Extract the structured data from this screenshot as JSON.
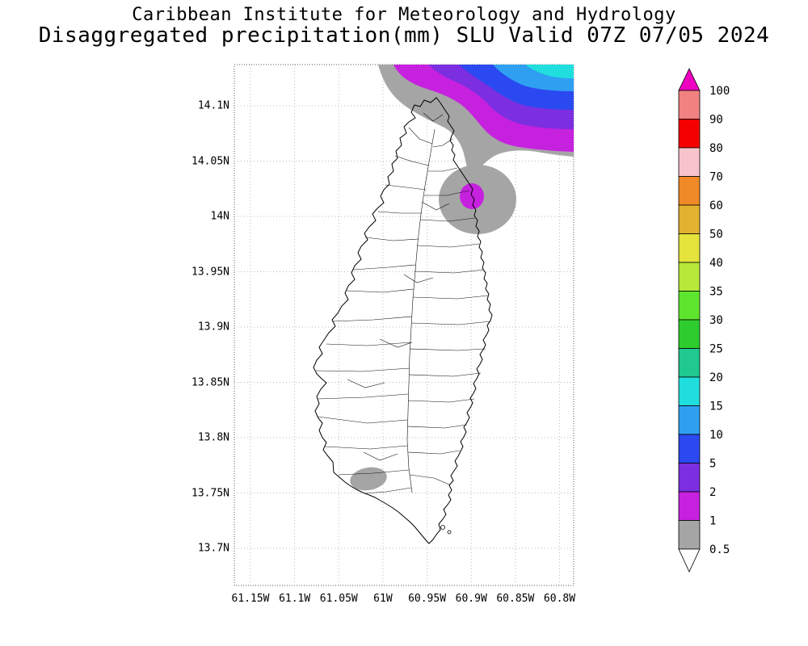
{
  "header": {
    "line1": "Caribbean Institute for Meteorology and Hydrology",
    "line2": "Disaggregated precipitation(mm) SLU Valid 07Z 07/05 2024"
  },
  "map": {
    "lat_labels": [
      "14.1N",
      "14.05N",
      "14N",
      "13.95N",
      "13.9N",
      "13.85N",
      "13.8N",
      "13.75N",
      "13.7N"
    ],
    "lon_labels": [
      "61.15W",
      "61.1W",
      "61.05W",
      "61W",
      "60.95W",
      "60.9W",
      "60.85W",
      "60.8W"
    ]
  },
  "colorbar": {
    "boundary_labels": [
      "100",
      "90",
      "80",
      "70",
      "60",
      "50",
      "40",
      "35",
      "30",
      "25",
      "20",
      "15",
      "10",
      "5",
      "2",
      "1",
      "0.5"
    ],
    "segment_colors_top_to_bottom": [
      "#f28282",
      "#f50000",
      "#f8c3cb",
      "#f08a28",
      "#e2b12e",
      "#e4e43c",
      "#b6e93a",
      "#5ee52e",
      "#2ecc2e",
      "#1fc990",
      "#21dede",
      "#2f9ff2",
      "#2b49f0",
      "#7b2fe0",
      "#c621df",
      "#a5a5a5"
    ],
    "arrow_top_color": "#ee00c0",
    "arrow_bottom_color": "#ffffff"
  },
  "chart_data": {
    "type": "heatmap",
    "title": "Disaggregated precipitation(mm) SLU Valid 07Z 07/05 2024",
    "subtitle": "Caribbean Institute for Meteorology and Hydrology",
    "region": "Saint Lucia (SLU)",
    "valid_time": "07Z 07/05 2024",
    "units": "mm",
    "lat_axis": {
      "ticks": [
        "14.1N",
        "14.05N",
        "14N",
        "13.95N",
        "13.9N",
        "13.85N",
        "13.8N",
        "13.75N",
        "13.7N"
      ],
      "range": [
        "13.67N",
        "14.14N"
      ]
    },
    "lon_axis": {
      "ticks": [
        "61.15W",
        "61.1W",
        "61.05W",
        "61W",
        "60.95W",
        "60.9W",
        "60.85W",
        "60.8W"
      ],
      "range": [
        "61.17W",
        "60.78W"
      ]
    },
    "contour_levels_mm": [
      0.5,
      1,
      2,
      5,
      10,
      15,
      20,
      25,
      30,
      35,
      40,
      50,
      60,
      70,
      80,
      90,
      100
    ],
    "grid": "dotted lat-lon graticule",
    "legend_position": "right",
    "features": [
      {
        "name": "offshore precipitation system north-northeast of island",
        "peak_band_mm": "15-20",
        "approx_location": "14.10N-14.14N, 60.80W-60.88W",
        "bands_outer_to_inner_mm": [
          "0.5-1",
          "1-2",
          "2-5",
          "5-10",
          "10-15",
          "15-20"
        ]
      },
      {
        "name": "small cell on northeast coast",
        "peak_band_mm": "1-2",
        "approx_location": "14.02N, 60.90W",
        "bands_outer_to_inner_mm": [
          "0.5-1",
          "1-2"
        ]
      },
      {
        "name": "light cell near southwest coast",
        "peak_band_mm": "0.5-1",
        "approx_location": "13.76N, 61.02W",
        "bands_outer_to_inner_mm": [
          "0.5-1"
        ]
      }
    ]
  }
}
